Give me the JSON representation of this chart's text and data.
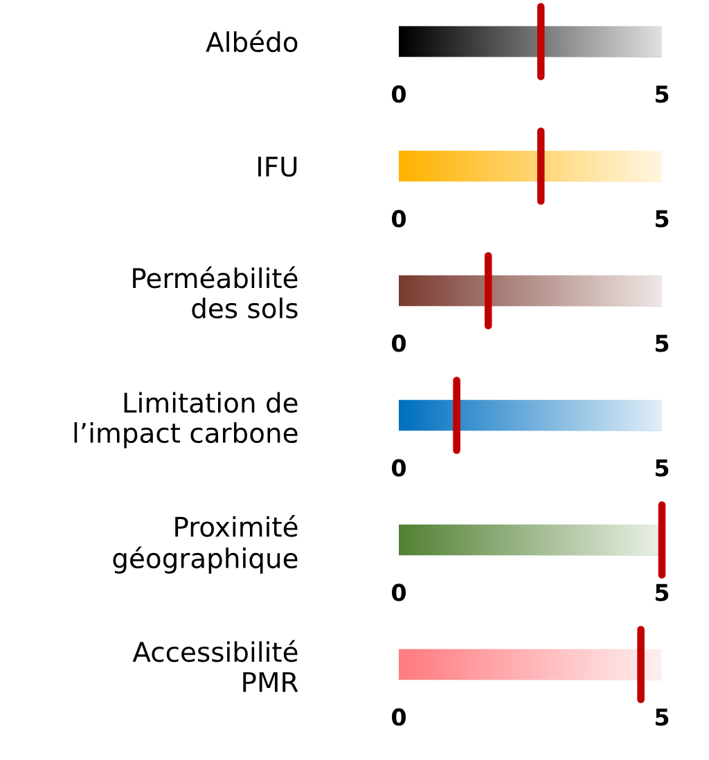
{
  "chart_data": [
    {
      "type": "bar",
      "orientation": "horizontal",
      "categories": [
        "Albédo"
      ],
      "values": [
        5
      ],
      "color": "#000000",
      "xlim": [
        0,
        5
      ],
      "xticks": [
        0,
        5
      ],
      "ref_lines": [
        {
          "axis": "x",
          "value": 2.7,
          "color": "#c00000"
        }
      ]
    },
    {
      "type": "bar",
      "orientation": "horizontal",
      "categories": [
        "IFU"
      ],
      "values": [
        5
      ],
      "color": "#ffb300",
      "xlim": [
        0,
        5
      ],
      "xticks": [
        0,
        5
      ],
      "ref_lines": [
        {
          "axis": "x",
          "value": 2.7,
          "color": "#c00000"
        }
      ]
    },
    {
      "type": "bar",
      "orientation": "horizontal",
      "categories": [
        "Perméabilité\ndes sols"
      ],
      "values": [
        5
      ],
      "color": "#7a3b30",
      "xlim": [
        0,
        5
      ],
      "xticks": [
        0,
        5
      ],
      "ref_lines": [
        {
          "axis": "x",
          "value": 1.7,
          "color": "#c00000"
        }
      ]
    },
    {
      "type": "bar",
      "orientation": "horizontal",
      "categories": [
        "Limitation de\nl’impact carbone"
      ],
      "values": [
        5
      ],
      "color": "#0070c0",
      "xlim": [
        0,
        5
      ],
      "xticks": [
        0,
        5
      ],
      "ref_lines": [
        {
          "axis": "x",
          "value": 1.1,
          "color": "#c00000"
        }
      ]
    },
    {
      "type": "bar",
      "orientation": "horizontal",
      "categories": [
        "Proximité\ngéographique"
      ],
      "values": [
        5
      ],
      "color": "#548235",
      "xlim": [
        0,
        5
      ],
      "xticks": [
        0,
        5
      ],
      "ref_lines": [
        {
          "axis": "x",
          "value": 5,
          "color": "#c00000"
        }
      ]
    },
    {
      "type": "bar",
      "orientation": "horizontal",
      "categories": [
        "Accessibilité\nPMR"
      ],
      "values": [
        5
      ],
      "color": "#ff7c80",
      "xlim": [
        0,
        5
      ],
      "xticks": [
        0,
        5
      ],
      "ref_lines": [
        {
          "axis": "x",
          "value": 4.6,
          "color": "#c00000"
        }
      ]
    }
  ]
}
